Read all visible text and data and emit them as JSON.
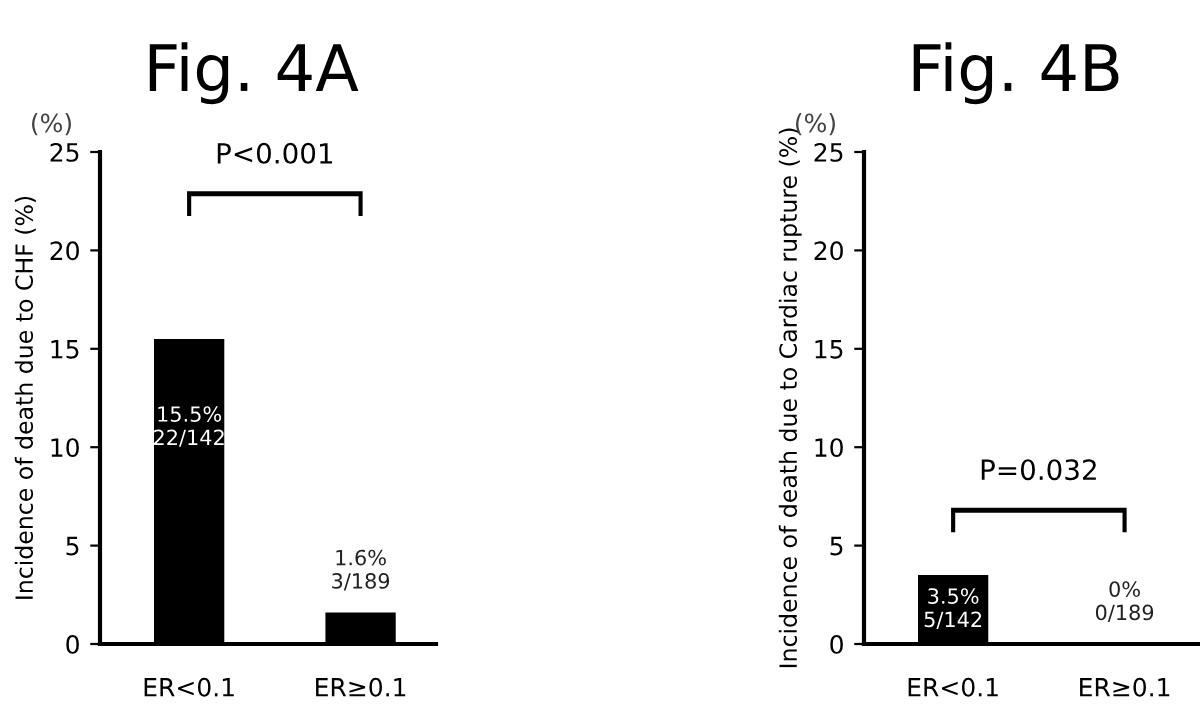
{
  "chart_data": [
    {
      "type": "bar",
      "title": "Fig. 4A",
      "ylabel": "Incidence of death due to CHF (%)",
      "categories": [
        "ER<0.1",
        "ER≥0.1"
      ],
      "values": [
        15.5,
        1.6
      ],
      "color": "#000000",
      "value_labels": [
        "15.5%\n22/142",
        "1.6%\n3/189"
      ],
      "ylim": [
        0,
        25
      ],
      "yticks": [
        0,
        5,
        10,
        15,
        20,
        25
      ],
      "annotations": [
        "(%)",
        "P<0.001"
      ]
    },
    {
      "type": "bar",
      "title": "Fig. 4B",
      "ylabel": "Incidence of death due to Cardiac rupture (%)",
      "categories": [
        "ER<0.1",
        "ER≥0.1"
      ],
      "values": [
        3.5,
        0
      ],
      "color": "#000000",
      "value_labels": [
        "3.5%\n5/142",
        "0%\n0/189"
      ],
      "ylim": [
        0,
        25
      ],
      "yticks": [
        0,
        5,
        10,
        15,
        20,
        25
      ],
      "annotations": [
        "(%)",
        "P=0.032"
      ]
    }
  ]
}
